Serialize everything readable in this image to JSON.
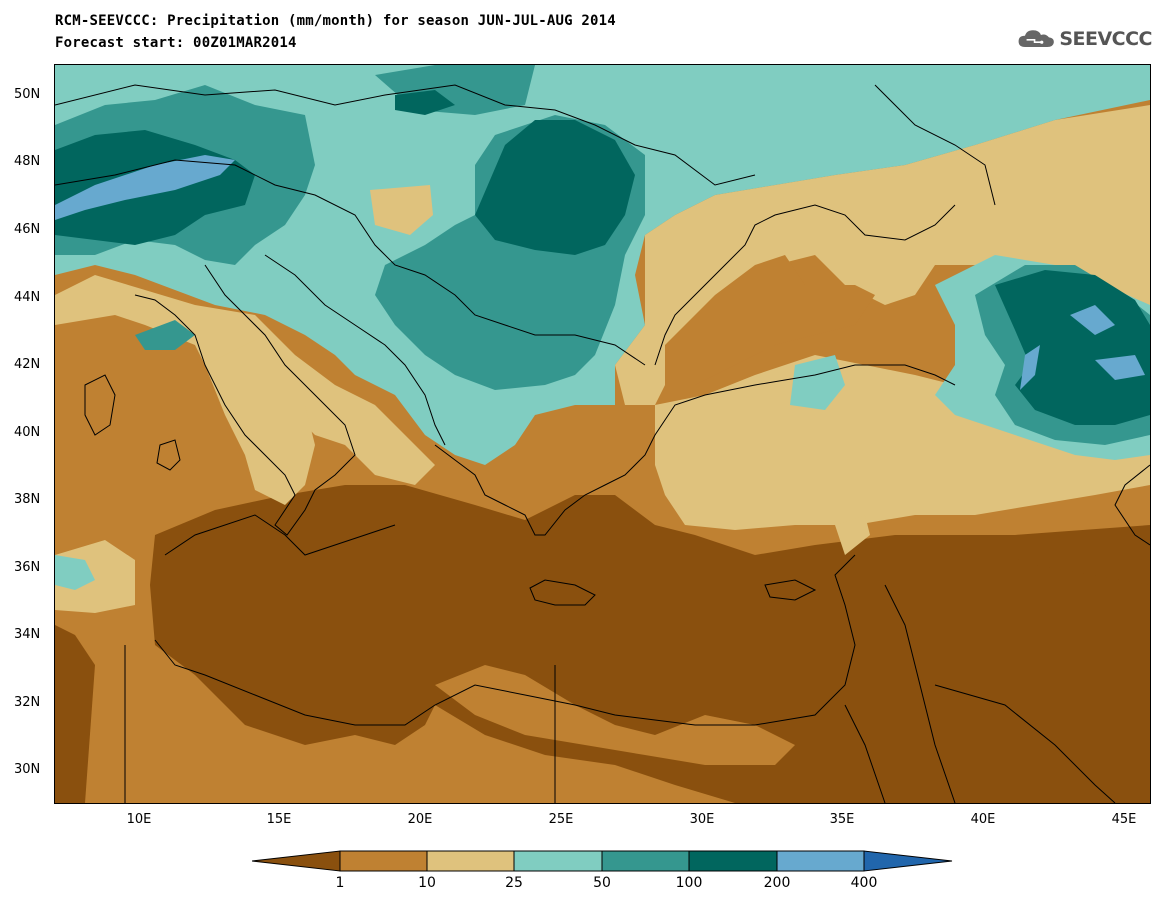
{
  "header": {
    "title_line1": "RCM-SEEVCCC: Precipitation (mm/month) for season JUN-JUL-AUG 2014",
    "title_line2": "Forecast start: 00Z01MAR2014",
    "logo_text": "SEEVCCC",
    "logo_icon": "cloud-icon"
  },
  "axes": {
    "lat_labels": [
      "50N",
      "48N",
      "46N",
      "44N",
      "42N",
      "40N",
      "38N",
      "36N",
      "34N",
      "32N",
      "30N"
    ],
    "lon_labels": [
      "10E",
      "15E",
      "20E",
      "25E",
      "30E",
      "35E",
      "40E",
      "45E"
    ]
  },
  "colorbar": {
    "colors": [
      "#8a500e",
      "#bf8132",
      "#dfc27d",
      "#80cdc1",
      "#35978f",
      "#01665e",
      "#67a9cf",
      "#2166ac"
    ],
    "labels": [
      "1",
      "10",
      "25",
      "50",
      "100",
      "200",
      "400"
    ]
  }
}
